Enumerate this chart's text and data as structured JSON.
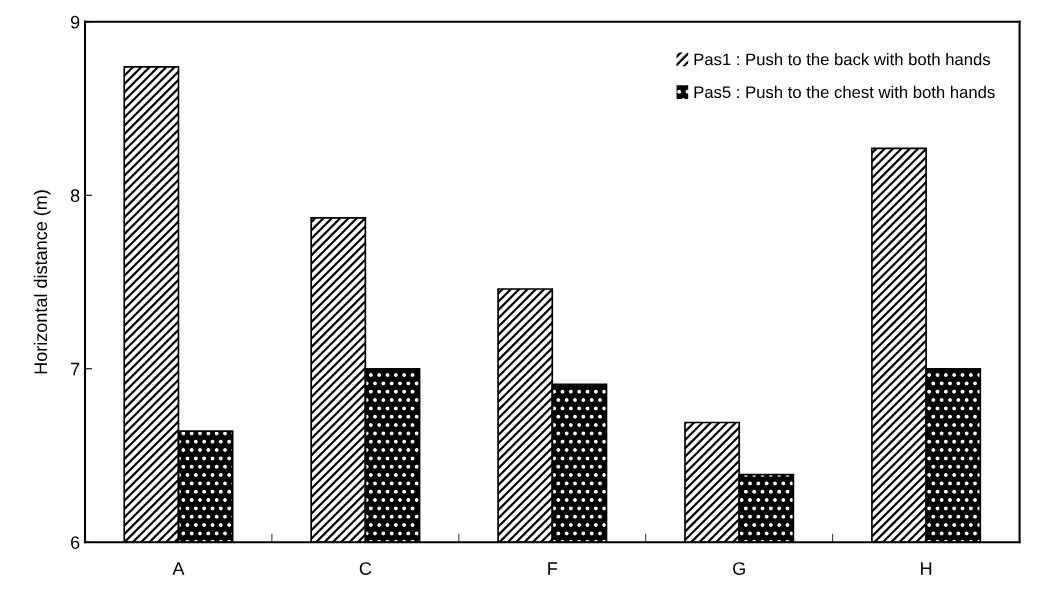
{
  "chart_data": {
    "type": "bar",
    "ylabel": "Horizontal distance (m)",
    "categories": [
      "A",
      "C",
      "F",
      "G",
      "H"
    ],
    "series": [
      {
        "name": "Pas1 : Push to the back with both hands",
        "color": "#ffffff",
        "values": [
          8.74,
          7.87,
          7.46,
          6.69,
          8.27
        ]
      },
      {
        "name": "Pas5 : Push to the chest with both hands",
        "color": "#000000",
        "values": [
          6.64,
          7.0,
          6.91,
          6.39,
          7.0
        ]
      }
    ],
    "ylim": [
      6,
      9
    ],
    "yticks": [
      6,
      7,
      8,
      9
    ],
    "grid": false,
    "legend": "top right"
  }
}
